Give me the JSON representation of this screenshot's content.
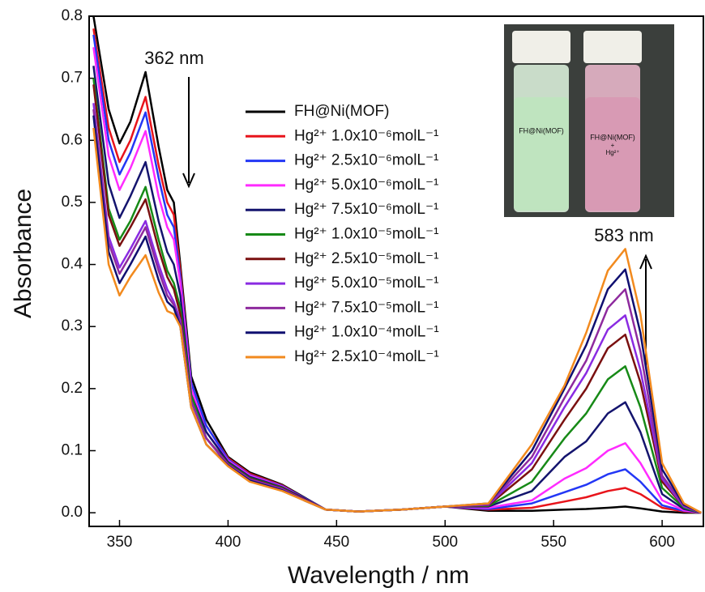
{
  "chart_data": {
    "type": "line",
    "x_label": "Wavelength / nm",
    "y_label": "Absorbance",
    "xlim": [
      336,
      619
    ],
    "ylim": [
      -0.022,
      0.8
    ],
    "xticks": [
      350,
      400,
      450,
      500,
      550,
      600
    ],
    "yticks": [
      {
        "value": 0,
        "label": "0.0"
      },
      0.1,
      0.2,
      0.3,
      0.4,
      0.5,
      0.6,
      0.7,
      0.8
    ],
    "annotations": [
      "362 nm",
      "583 nm"
    ],
    "inset": {
      "left_label": "FH@Ni(MOF)",
      "right_label": [
        "FH@Ni(MOF)",
        "+",
        "Hg²⁺"
      ]
    },
    "x": [
      338,
      345,
      350,
      355,
      362,
      368,
      372,
      375,
      378,
      383,
      390,
      400,
      410,
      425,
      435,
      445,
      460,
      480,
      500,
      520,
      540,
      555,
      565,
      575,
      583,
      590,
      600,
      610,
      618
    ],
    "series": [
      {
        "name": "FH@Ni(MOF)",
        "color": "#000000",
        "values": [
          0.8,
          0.65,
          0.595,
          0.63,
          0.71,
          0.59,
          0.52,
          0.5,
          0.4,
          0.22,
          0.15,
          0.09,
          0.065,
          0.045,
          0.025,
          0.005,
          0.002,
          0.005,
          0.01,
          0.003,
          0.003,
          0.005,
          0.006,
          0.008,
          0.01,
          0.007,
          0.002,
          0.0,
          0.0
        ]
      },
      {
        "name": "Hg²⁺ 1.0x10⁻⁶molL⁻¹",
        "color": "#e8141b",
        "values": [
          0.78,
          0.62,
          0.565,
          0.6,
          0.67,
          0.56,
          0.5,
          0.48,
          0.39,
          0.21,
          0.14,
          0.088,
          0.063,
          0.044,
          0.024,
          0.005,
          0.002,
          0.005,
          0.01,
          0.005,
          0.008,
          0.018,
          0.025,
          0.035,
          0.04,
          0.03,
          0.008,
          0.002,
          0.0
        ]
      },
      {
        "name": "Hg²⁺ 2.5x10⁻⁶molL⁻¹",
        "color": "#2337f5",
        "values": [
          0.77,
          0.6,
          0.545,
          0.58,
          0.645,
          0.54,
          0.48,
          0.46,
          0.38,
          0.21,
          0.14,
          0.086,
          0.061,
          0.043,
          0.024,
          0.005,
          0.002,
          0.005,
          0.01,
          0.006,
          0.015,
          0.033,
          0.045,
          0.062,
          0.07,
          0.05,
          0.012,
          0.003,
          0.0
        ]
      },
      {
        "name": "Hg²⁺ 5.0x10⁻⁶molL⁻¹",
        "color": "#ff2bff",
        "values": [
          0.75,
          0.575,
          0.52,
          0.555,
          0.615,
          0.51,
          0.46,
          0.44,
          0.37,
          0.2,
          0.13,
          0.084,
          0.06,
          0.042,
          0.023,
          0.005,
          0.002,
          0.005,
          0.01,
          0.008,
          0.02,
          0.055,
          0.072,
          0.1,
          0.112,
          0.08,
          0.02,
          0.004,
          0.0
        ]
      },
      {
        "name": "Hg²⁺ 7.5x10⁻⁶molL⁻¹",
        "color": "#14146e",
        "values": [
          0.72,
          0.53,
          0.475,
          0.51,
          0.565,
          0.47,
          0.42,
          0.4,
          0.35,
          0.19,
          0.13,
          0.082,
          0.058,
          0.041,
          0.023,
          0.005,
          0.002,
          0.005,
          0.01,
          0.01,
          0.035,
          0.09,
          0.115,
          0.16,
          0.178,
          0.13,
          0.03,
          0.006,
          0.0
        ]
      },
      {
        "name": "Hg²⁺ 1.0x10⁻⁵molL⁻¹",
        "color": "#178a17",
        "values": [
          0.7,
          0.49,
          0.44,
          0.47,
          0.525,
          0.44,
          0.39,
          0.37,
          0.33,
          0.19,
          0.12,
          0.08,
          0.056,
          0.04,
          0.022,
          0.005,
          0.002,
          0.005,
          0.01,
          0.011,
          0.05,
          0.12,
          0.16,
          0.215,
          0.236,
          0.17,
          0.04,
          0.008,
          0.0
        ]
      },
      {
        "name": "Hg²⁺ 2.5x10⁻⁵molL⁻¹",
        "color": "#7a1010",
        "values": [
          0.69,
          0.48,
          0.43,
          0.46,
          0.505,
          0.425,
          0.38,
          0.36,
          0.32,
          0.18,
          0.12,
          0.079,
          0.055,
          0.039,
          0.022,
          0.005,
          0.002,
          0.005,
          0.01,
          0.012,
          0.07,
          0.15,
          0.2,
          0.265,
          0.287,
          0.21,
          0.05,
          0.01,
          0.0
        ]
      },
      {
        "name": "Hg²⁺ 5.0x10⁻⁵molL⁻¹",
        "color": "#8a2be2",
        "values": [
          0.66,
          0.445,
          0.395,
          0.425,
          0.47,
          0.4,
          0.36,
          0.34,
          0.31,
          0.18,
          0.12,
          0.078,
          0.054,
          0.038,
          0.021,
          0.005,
          0.002,
          0.005,
          0.01,
          0.013,
          0.08,
          0.17,
          0.225,
          0.295,
          0.318,
          0.23,
          0.055,
          0.01,
          0.0
        ]
      },
      {
        "name": "Hg²⁺ 7.5x10⁻⁵molL⁻¹",
        "color": "#8e2a9e",
        "values": [
          0.65,
          0.435,
          0.385,
          0.415,
          0.46,
          0.39,
          0.35,
          0.335,
          0.305,
          0.18,
          0.12,
          0.077,
          0.053,
          0.037,
          0.021,
          0.005,
          0.002,
          0.005,
          0.01,
          0.014,
          0.09,
          0.185,
          0.245,
          0.33,
          0.36,
          0.26,
          0.06,
          0.012,
          0.0
        ]
      },
      {
        "name": "Hg²⁺ 1.0x10⁻⁴molL⁻¹",
        "color": "#0f0f70",
        "values": [
          0.64,
          0.42,
          0.37,
          0.4,
          0.445,
          0.375,
          0.34,
          0.33,
          0.3,
          0.17,
          0.11,
          0.076,
          0.052,
          0.036,
          0.02,
          0.005,
          0.002,
          0.005,
          0.01,
          0.015,
          0.1,
          0.2,
          0.27,
          0.36,
          0.392,
          0.29,
          0.07,
          0.013,
          0.0
        ]
      },
      {
        "name": "Hg²⁺ 2.5x10⁻⁴molL⁻¹",
        "color": "#f28a1e",
        "values": [
          0.62,
          0.4,
          0.35,
          0.38,
          0.415,
          0.355,
          0.325,
          0.32,
          0.3,
          0.17,
          0.11,
          0.075,
          0.05,
          0.035,
          0.02,
          0.005,
          0.002,
          0.005,
          0.01,
          0.015,
          0.11,
          0.205,
          0.29,
          0.39,
          0.425,
          0.32,
          0.08,
          0.015,
          0.0
        ]
      }
    ]
  }
}
